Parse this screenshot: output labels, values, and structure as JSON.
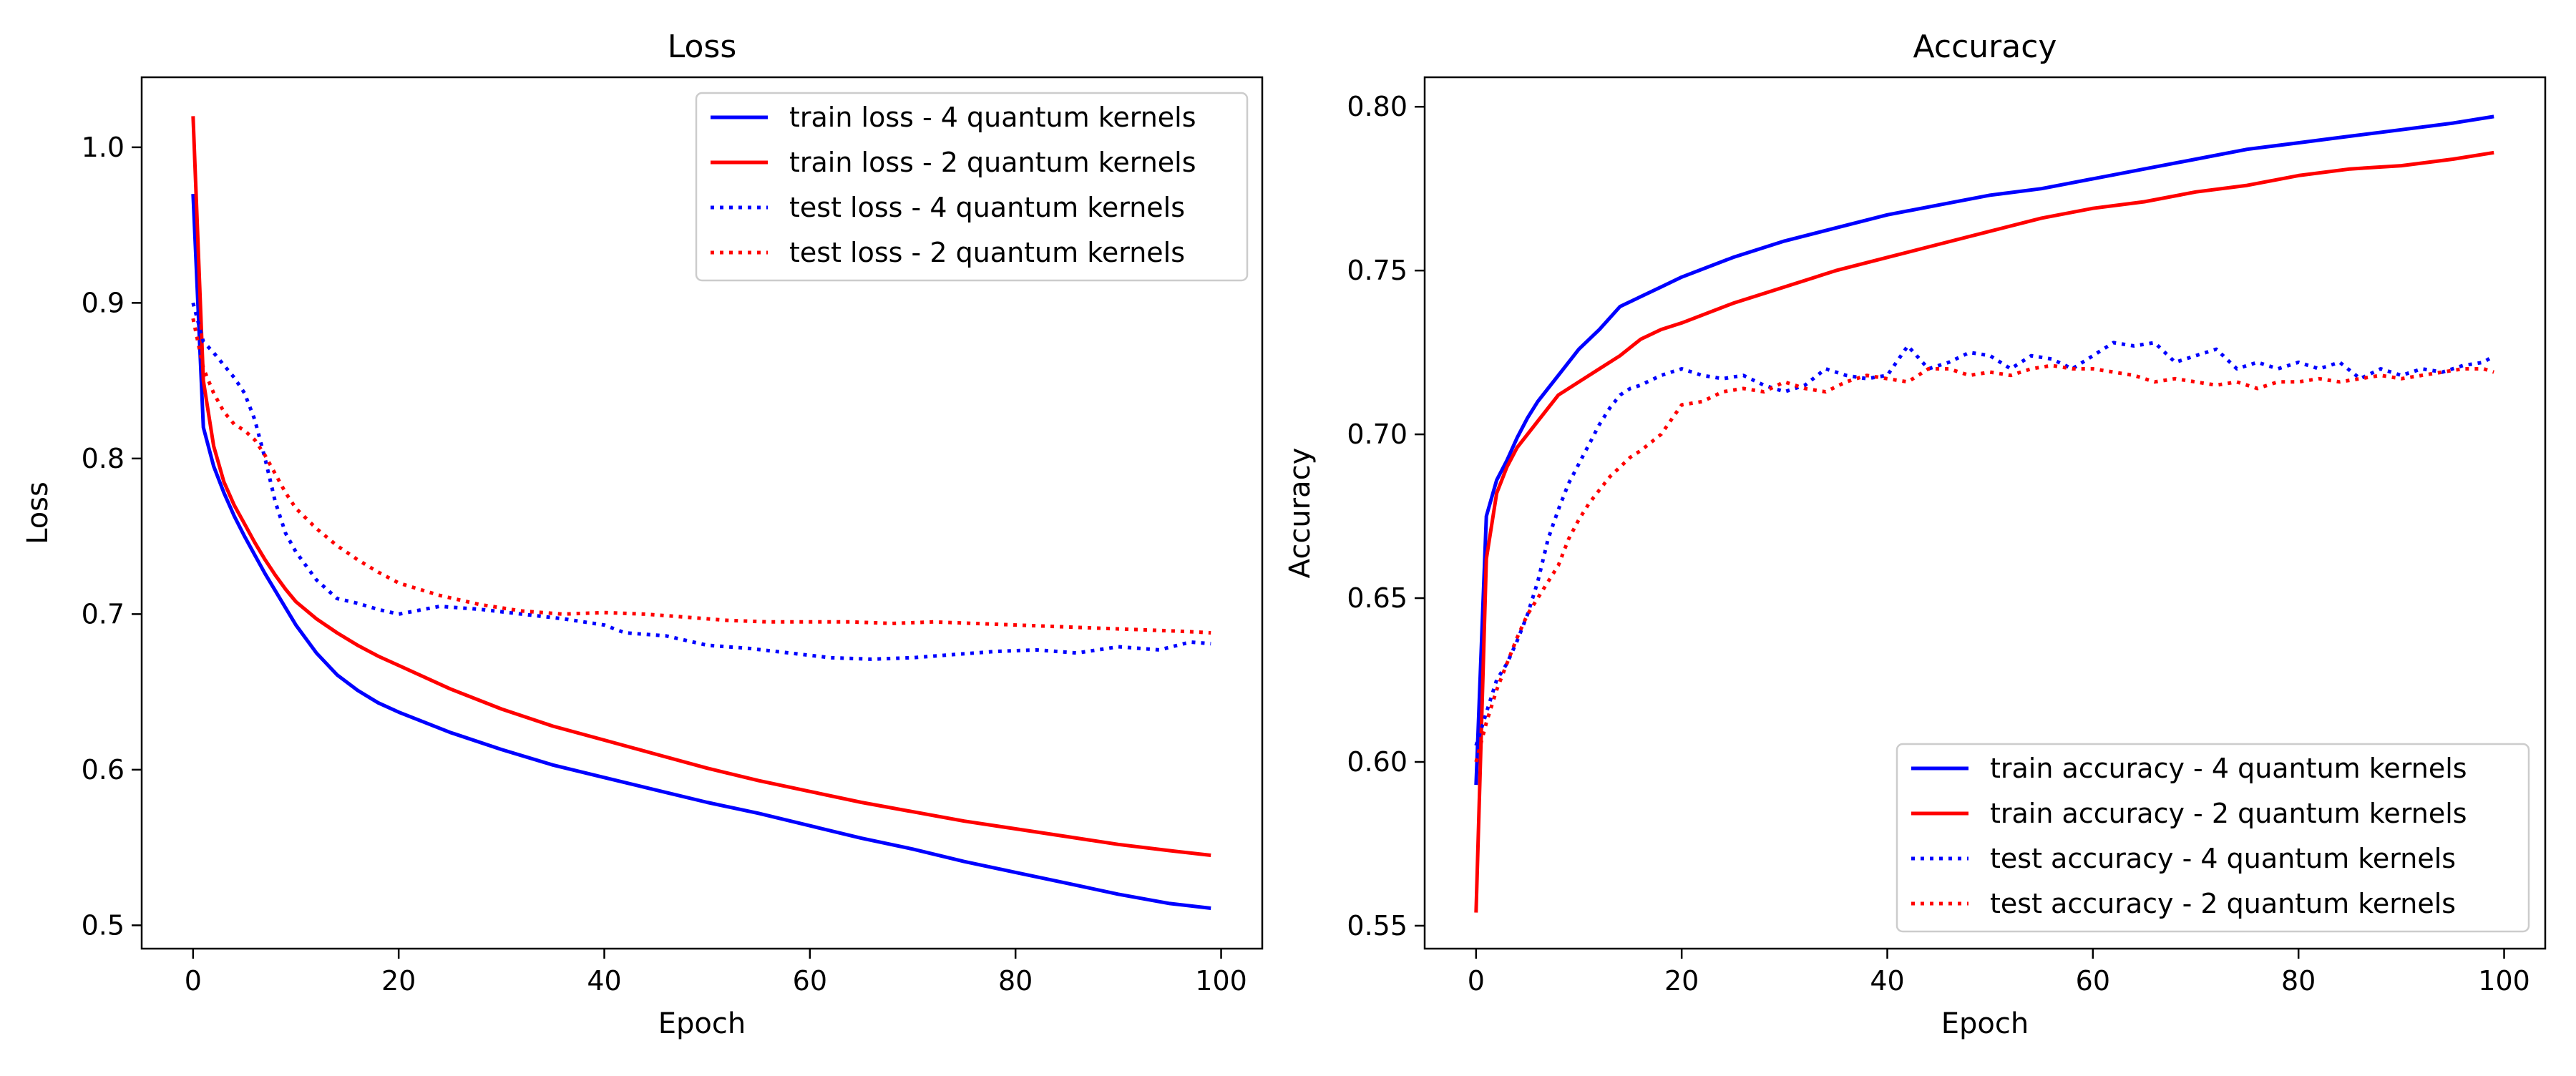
{
  "chart_data": [
    {
      "type": "line",
      "title": "Loss",
      "xlabel": "Epoch",
      "ylabel": "Loss",
      "xlim": [
        -5,
        104
      ],
      "ylim": [
        0.485,
        1.045
      ],
      "xticks": [
        0,
        20,
        40,
        60,
        80,
        100
      ],
      "yticks": [
        0.5,
        0.6,
        0.7,
        0.8,
        0.9,
        1.0
      ],
      "xtick_labels": [
        "0",
        "20",
        "40",
        "60",
        "80",
        "100"
      ],
      "ytick_labels": [
        "0.5",
        "0.6",
        "0.7",
        "0.8",
        "0.9",
        "1.0"
      ],
      "legend_position": "top-right",
      "grid": false,
      "series": [
        {
          "name": "train loss - 4 quantum kernels",
          "color": "#0000ff",
          "style": "solid",
          "x": [
            0,
            1,
            2,
            3,
            4,
            5,
            6,
            7,
            8,
            9,
            10,
            12,
            14,
            16,
            18,
            20,
            25,
            30,
            35,
            40,
            45,
            50,
            55,
            60,
            65,
            70,
            75,
            80,
            85,
            90,
            95,
            99
          ],
          "y": [
            0.97,
            0.82,
            0.795,
            0.778,
            0.763,
            0.75,
            0.738,
            0.726,
            0.715,
            0.704,
            0.693,
            0.675,
            0.661,
            0.651,
            0.643,
            0.637,
            0.624,
            0.613,
            0.603,
            0.595,
            0.587,
            0.579,
            0.572,
            0.564,
            0.556,
            0.549,
            0.541,
            0.534,
            0.527,
            0.52,
            0.514,
            0.511
          ]
        },
        {
          "name": "train loss - 2 quantum kernels",
          "color": "#ff0000",
          "style": "solid",
          "x": [
            0,
            1,
            2,
            3,
            4,
            5,
            6,
            7,
            8,
            9,
            10,
            12,
            14,
            16,
            18,
            20,
            25,
            30,
            35,
            40,
            45,
            50,
            55,
            60,
            65,
            70,
            75,
            80,
            85,
            90,
            95,
            99
          ],
          "y": [
            1.02,
            0.85,
            0.808,
            0.785,
            0.77,
            0.758,
            0.746,
            0.735,
            0.725,
            0.716,
            0.708,
            0.697,
            0.688,
            0.68,
            0.673,
            0.667,
            0.652,
            0.639,
            0.628,
            0.619,
            0.61,
            0.601,
            0.593,
            0.586,
            0.579,
            0.573,
            0.567,
            0.562,
            0.557,
            0.552,
            0.548,
            0.545
          ]
        },
        {
          "name": "test loss - 4 quantum kernels",
          "color": "#0000ff",
          "style": "dotted",
          "x": [
            0,
            1,
            2,
            3,
            4,
            5,
            6,
            7,
            8,
            9,
            10,
            12,
            14,
            16,
            18,
            20,
            24,
            28,
            32,
            36,
            40,
            42,
            46,
            50,
            54,
            58,
            62,
            66,
            70,
            74,
            78,
            82,
            86,
            90,
            94,
            97,
            99
          ],
          "y": [
            0.9,
            0.875,
            0.868,
            0.86,
            0.852,
            0.842,
            0.825,
            0.8,
            0.772,
            0.752,
            0.74,
            0.722,
            0.71,
            0.707,
            0.703,
            0.7,
            0.705,
            0.703,
            0.7,
            0.697,
            0.693,
            0.688,
            0.686,
            0.68,
            0.678,
            0.675,
            0.672,
            0.671,
            0.672,
            0.674,
            0.676,
            0.677,
            0.675,
            0.679,
            0.677,
            0.682,
            0.681
          ]
        },
        {
          "name": "test loss - 2 quantum kernels",
          "color": "#ff0000",
          "style": "dotted",
          "x": [
            0,
            1,
            2,
            3,
            4,
            5,
            6,
            7,
            8,
            9,
            10,
            12,
            14,
            16,
            18,
            20,
            24,
            28,
            32,
            36,
            40,
            44,
            48,
            52,
            56,
            60,
            64,
            68,
            72,
            76,
            80,
            84,
            88,
            92,
            96,
            99
          ],
          "y": [
            0.89,
            0.858,
            0.842,
            0.83,
            0.822,
            0.818,
            0.812,
            0.802,
            0.79,
            0.778,
            0.768,
            0.755,
            0.744,
            0.735,
            0.727,
            0.72,
            0.712,
            0.706,
            0.702,
            0.7,
            0.701,
            0.7,
            0.698,
            0.696,
            0.695,
            0.695,
            0.695,
            0.694,
            0.695,
            0.694,
            0.693,
            0.692,
            0.691,
            0.69,
            0.689,
            0.688
          ]
        }
      ]
    },
    {
      "type": "line",
      "title": "Accuracy",
      "xlabel": "Epoch",
      "ylabel": "Accuracy",
      "xlim": [
        -5,
        104
      ],
      "ylim": [
        0.543,
        0.809
      ],
      "xticks": [
        0,
        20,
        40,
        60,
        80,
        100
      ],
      "yticks": [
        0.55,
        0.6,
        0.65,
        0.7,
        0.75,
        0.8
      ],
      "xtick_labels": [
        "0",
        "20",
        "40",
        "60",
        "80",
        "100"
      ],
      "ytick_labels": [
        "0.55",
        "0.60",
        "0.65",
        "0.70",
        "0.75",
        "0.80"
      ],
      "legend_position": "bottom-right",
      "grid": false,
      "series": [
        {
          "name": "train accuracy - 4 quantum kernels",
          "color": "#0000ff",
          "style": "solid",
          "x": [
            0,
            1,
            2,
            3,
            4,
            5,
            6,
            8,
            10,
            12,
            14,
            16,
            18,
            20,
            25,
            30,
            35,
            40,
            45,
            50,
            55,
            60,
            65,
            70,
            75,
            80,
            85,
            90,
            95,
            99
          ],
          "y": [
            0.593,
            0.675,
            0.686,
            0.692,
            0.699,
            0.705,
            0.71,
            0.718,
            0.726,
            0.732,
            0.739,
            0.742,
            0.745,
            0.748,
            0.754,
            0.759,
            0.763,
            0.767,
            0.77,
            0.773,
            0.775,
            0.778,
            0.781,
            0.784,
            0.787,
            0.789,
            0.791,
            0.793,
            0.795,
            0.797
          ]
        },
        {
          "name": "train accuracy - 2 quantum kernels",
          "color": "#ff0000",
          "style": "solid",
          "x": [
            0,
            1,
            2,
            3,
            4,
            5,
            6,
            8,
            10,
            12,
            14,
            16,
            18,
            20,
            25,
            30,
            35,
            40,
            45,
            50,
            55,
            60,
            65,
            70,
            75,
            80,
            85,
            90,
            95,
            99
          ],
          "y": [
            0.554,
            0.662,
            0.682,
            0.69,
            0.696,
            0.7,
            0.704,
            0.712,
            0.716,
            0.72,
            0.724,
            0.729,
            0.732,
            0.734,
            0.74,
            0.745,
            0.75,
            0.754,
            0.758,
            0.762,
            0.766,
            0.769,
            0.771,
            0.774,
            0.776,
            0.779,
            0.781,
            0.782,
            0.784,
            0.786
          ]
        },
        {
          "name": "test accuracy - 4 quantum kernels",
          "color": "#0000ff",
          "style": "dotted",
          "x": [
            0,
            1,
            2,
            3,
            4,
            5,
            6,
            7,
            8,
            9,
            10,
            11,
            12,
            13,
            14,
            15,
            16,
            18,
            20,
            22,
            24,
            26,
            28,
            30,
            32,
            34,
            36,
            38,
            40,
            42,
            44,
            46,
            48,
            50,
            52,
            54,
            56,
            58,
            60,
            62,
            64,
            66,
            68,
            70,
            72,
            74,
            76,
            78,
            80,
            82,
            84,
            86,
            88,
            90,
            92,
            94,
            96,
            98,
            99
          ],
          "y": [
            0.605,
            0.615,
            0.625,
            0.63,
            0.637,
            0.645,
            0.655,
            0.668,
            0.677,
            0.685,
            0.691,
            0.697,
            0.703,
            0.708,
            0.712,
            0.714,
            0.715,
            0.718,
            0.72,
            0.718,
            0.717,
            0.718,
            0.715,
            0.713,
            0.715,
            0.72,
            0.718,
            0.717,
            0.718,
            0.727,
            0.72,
            0.722,
            0.725,
            0.724,
            0.72,
            0.724,
            0.723,
            0.72,
            0.724,
            0.728,
            0.727,
            0.728,
            0.722,
            0.724,
            0.726,
            0.72,
            0.722,
            0.72,
            0.722,
            0.72,
            0.722,
            0.717,
            0.72,
            0.718,
            0.72,
            0.719,
            0.721,
            0.722,
            0.724
          ]
        },
        {
          "name": "test accuracy - 2 quantum kernels",
          "color": "#ff0000",
          "style": "dotted",
          "x": [
            0,
            1,
            2,
            3,
            4,
            5,
            6,
            7,
            8,
            9,
            10,
            11,
            12,
            13,
            14,
            15,
            16,
            18,
            20,
            22,
            24,
            26,
            28,
            30,
            32,
            34,
            36,
            38,
            40,
            42,
            44,
            46,
            48,
            50,
            52,
            54,
            56,
            58,
            60,
            62,
            64,
            66,
            68,
            70,
            72,
            74,
            76,
            78,
            80,
            82,
            84,
            86,
            88,
            90,
            92,
            94,
            96,
            98,
            99
          ],
          "y": [
            0.6,
            0.612,
            0.622,
            0.63,
            0.638,
            0.645,
            0.65,
            0.655,
            0.66,
            0.668,
            0.674,
            0.679,
            0.683,
            0.687,
            0.69,
            0.693,
            0.695,
            0.7,
            0.709,
            0.71,
            0.713,
            0.714,
            0.713,
            0.716,
            0.714,
            0.713,
            0.716,
            0.718,
            0.717,
            0.716,
            0.72,
            0.72,
            0.718,
            0.719,
            0.718,
            0.72,
            0.721,
            0.72,
            0.72,
            0.719,
            0.718,
            0.716,
            0.717,
            0.716,
            0.715,
            0.716,
            0.714,
            0.716,
            0.716,
            0.717,
            0.716,
            0.717,
            0.718,
            0.717,
            0.718,
            0.719,
            0.72,
            0.72,
            0.719
          ]
        }
      ]
    }
  ]
}
